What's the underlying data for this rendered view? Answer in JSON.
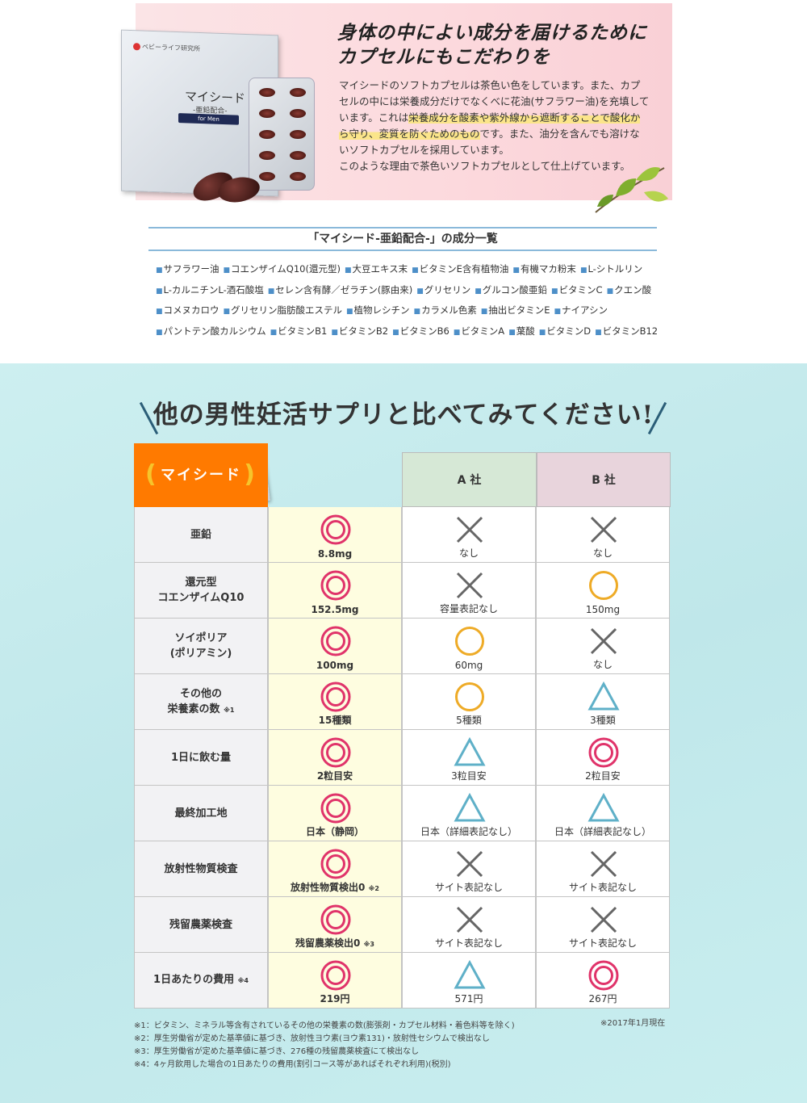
{
  "banner": {
    "headline": [
      "身体の中によい成分を届けるために",
      "カプセルにもこだわりを"
    ],
    "desc_1": "マイシードのソフトカプセルは茶色い色をしています。また、カプセルの中には栄養成分だけでなくべに花油(サフラワー油)を充填しています。これは",
    "desc_highlight": "栄養成分を酸素や紫外線から遮断することで酸化から守り、変質を防ぐためのもの",
    "desc_2": "です。また、油分を含んでも溶けないソフトカプセルを採用しています。",
    "desc_3": "このような理由で茶色いソフトカプセルとして仕上げています。",
    "product": {
      "maker": "ベビーライフ研究所",
      "name": "マイシード",
      "sub": "-亜鉛配合-",
      "tag": "for Men"
    }
  },
  "ingredients": {
    "title": "「マイシード-亜鉛配合-」の成分一覧",
    "items": [
      "サフラワー油",
      "コエンザイムQ10(還元型)",
      "大豆エキス末",
      "ビタミンE含有植物油",
      "有機マカ粉末",
      "L-シトルリン",
      "L-カルニチンL-酒石酸塩",
      "セレン含有酵／ゼラチン(豚由来)",
      "グリセリン",
      "グルコン酸亜鉛",
      "ビタミンC",
      "クエン酸",
      "コメヌカロウ",
      "グリセリン脂肪酸エステル",
      "植物レシチン",
      "カラメル色素",
      "抽出ビタミンE",
      "ナイアシン",
      "パントテン酸カルシウム",
      "ビタミンB1",
      "ビタミンB2",
      "ビタミンB6",
      "ビタミンA",
      "葉酸",
      "ビタミンD",
      "ビタミンB12"
    ]
  },
  "comparison": {
    "title": "他の男性妊活サプリと比べてみてください!",
    "headers": [
      "マイシード",
      "A 社",
      "B 社"
    ],
    "header_colors": [
      "#ff7a00",
      "#d6e8d6",
      "#e8d4dc"
    ],
    "mark_colors": {
      "double-circle": "#e0336a",
      "circle": "#eeab27",
      "triangle": "#5fb0c8",
      "cross": "#666666"
    },
    "rows": [
      {
        "label": "亜鉛",
        "cells": [
          {
            "mark": "double-circle",
            "text": "8.8mg"
          },
          {
            "mark": "cross",
            "text": "なし"
          },
          {
            "mark": "cross",
            "text": "なし"
          }
        ]
      },
      {
        "label": "還元型\nコエンザイムQ10",
        "cells": [
          {
            "mark": "double-circle",
            "text": "152.5mg"
          },
          {
            "mark": "cross",
            "text": "容量表記なし"
          },
          {
            "mark": "circle",
            "text": "150mg"
          }
        ]
      },
      {
        "label": "ソイポリア\n(ポリアミン)",
        "cells": [
          {
            "mark": "double-circle",
            "text": "100mg"
          },
          {
            "mark": "circle",
            "text": "60mg"
          },
          {
            "mark": "cross",
            "text": "なし"
          }
        ]
      },
      {
        "label": "その他の\n栄養素の数",
        "note": "※1",
        "cells": [
          {
            "mark": "double-circle",
            "text": "15種類"
          },
          {
            "mark": "circle",
            "text": "5種類"
          },
          {
            "mark": "triangle",
            "text": "3種類"
          }
        ]
      },
      {
        "label": "1日に飲む量",
        "cells": [
          {
            "mark": "double-circle",
            "text": "2粒目安"
          },
          {
            "mark": "triangle",
            "text": "3粒目安"
          },
          {
            "mark": "double-circle",
            "text": "2粒目安"
          }
        ]
      },
      {
        "label": "最終加工地",
        "cells": [
          {
            "mark": "double-circle",
            "text": "日本（静岡）"
          },
          {
            "mark": "triangle",
            "text": "日本（詳細表記なし）"
          },
          {
            "mark": "triangle",
            "text": "日本（詳細表記なし）"
          }
        ]
      },
      {
        "label": "放射性物質検査",
        "cells": [
          {
            "mark": "double-circle",
            "text": "放射性物質検出0",
            "note": "※2"
          },
          {
            "mark": "cross",
            "text": "サイト表記なし"
          },
          {
            "mark": "cross",
            "text": "サイト表記なし"
          }
        ]
      },
      {
        "label": "残留農薬検査",
        "cells": [
          {
            "mark": "double-circle",
            "text": "残留農薬検出0",
            "note": "※3"
          },
          {
            "mark": "cross",
            "text": "サイト表記なし"
          },
          {
            "mark": "cross",
            "text": "サイト表記なし"
          }
        ]
      },
      {
        "label": "1日あたりの費用",
        "note": "※4",
        "cells": [
          {
            "mark": "double-circle",
            "text": "219円"
          },
          {
            "mark": "triangle",
            "text": "571円"
          },
          {
            "mark": "double-circle",
            "text": "267円"
          }
        ]
      }
    ],
    "as_of": "※2017年1月現在",
    "footnotes": [
      "※1：ビタミン、ミネラル等含有されているその他の栄養素の数(膨張剤・カプセル材料・着色料等を除く)",
      "※2：厚生労働省が定めた基準値に基づき、放射性ヨウ素(ヨウ素131)・放射性セシウムで検出なし",
      "※3：厚生労働省が定めた基準値に基づき、276種の残留農薬検査にて検出なし",
      "※4：4ヶ月飲用した場合の1日あたりの費用(割引コース等があればそれぞれ利用)(税別)"
    ]
  }
}
